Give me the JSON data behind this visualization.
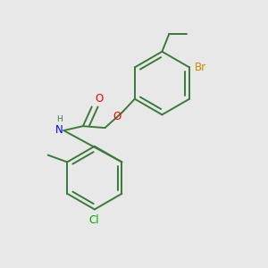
{
  "background_color": "#e8e8e8",
  "bond_color": "#3a7a3a",
  "bond_width": 1.4,
  "atom_colors": {
    "Br": "#cc8800",
    "O": "#ff0000",
    "N": "#0000ff",
    "Cl": "#00aa00",
    "C": "#3a7a3a",
    "H": "#3a7a3a"
  },
  "font_size": 8.5,
  "fig_width": 3.0,
  "fig_height": 3.0,
  "dpi": 100
}
